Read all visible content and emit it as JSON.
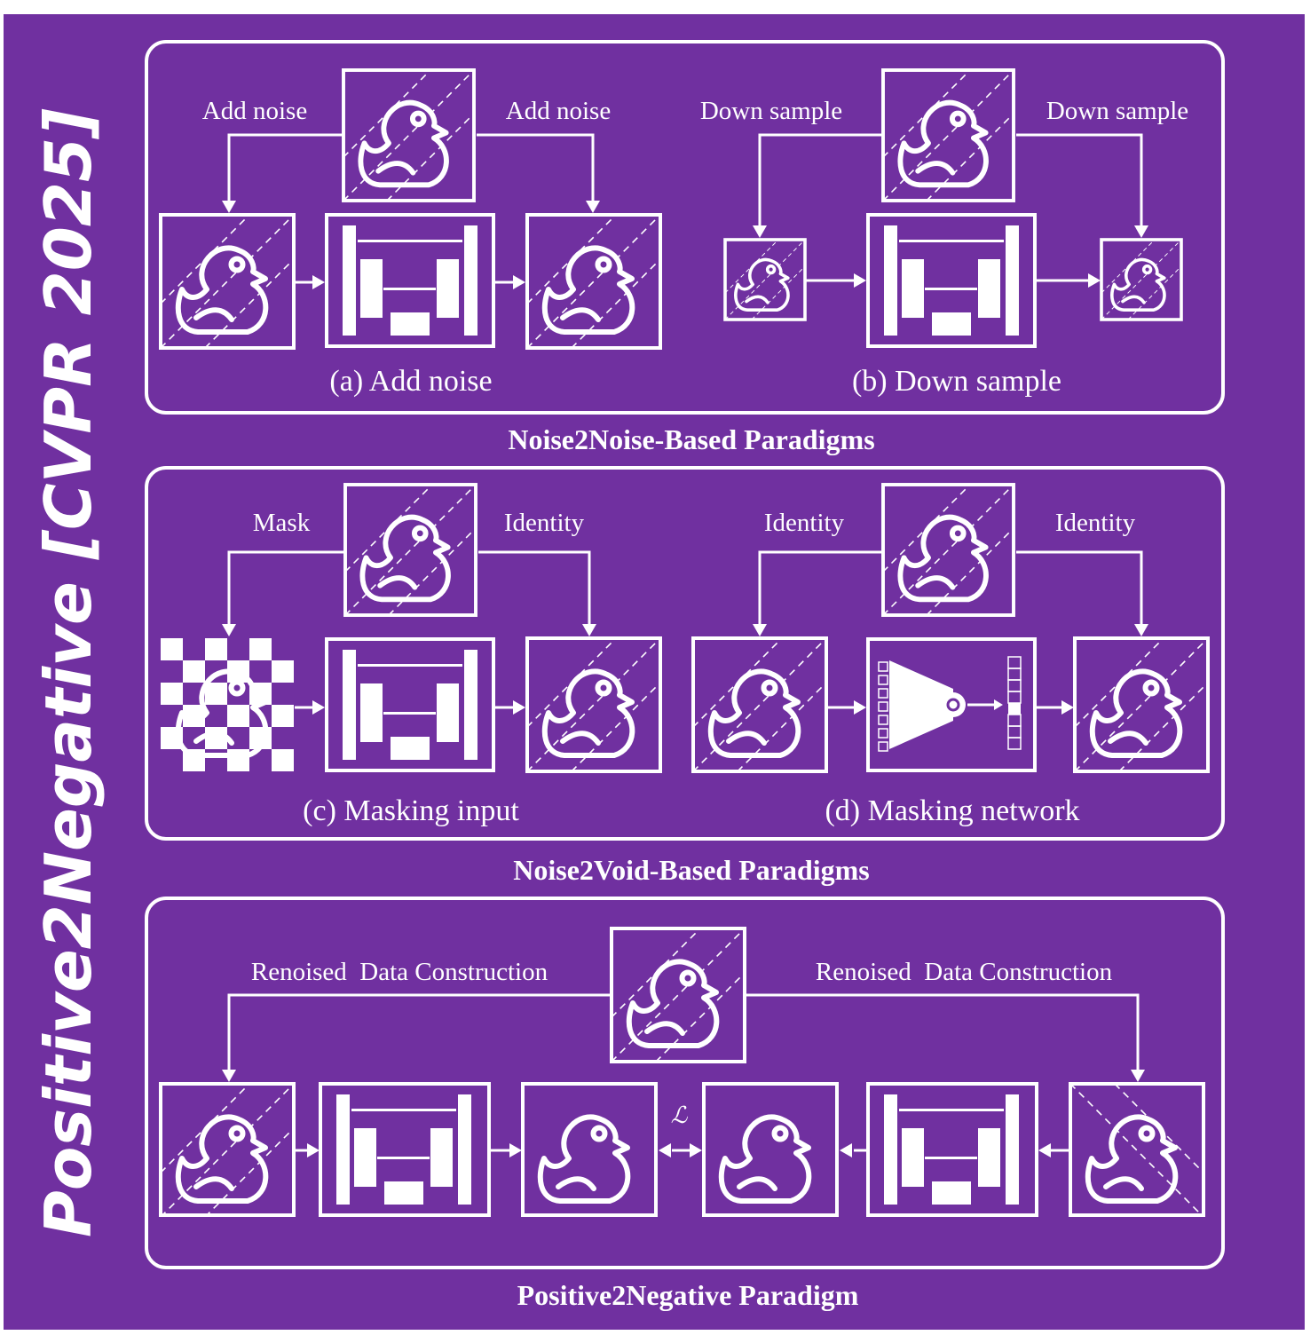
{
  "side_title": "Positive2Negative [CVPR 2025]",
  "colors": {
    "background": "#7030a0",
    "foreground": "#ffffff",
    "outer_margin": "#ffffff"
  },
  "icons": {
    "duck": "rubber-duck-icon",
    "unet": "unet-network-icon",
    "mask_net": "masking-network-icon",
    "checker": "checkerboard-mask-icon",
    "arrow": "arrow-icon",
    "loss": "loss-symbol"
  },
  "sections": {
    "n2n": {
      "heading": "Noise2Noise-Based Paradigms",
      "a": {
        "caption": "(a) Add noise",
        "left_label": "Add noise",
        "right_label": "Add noise"
      },
      "b": {
        "caption": "(b) Down sample",
        "left_label": "Down sample",
        "right_label": "Down sample"
      }
    },
    "n2v": {
      "heading": "Noise2Void-Based Paradigms",
      "c": {
        "caption": "(c) Masking input",
        "left_label": "Mask",
        "right_label": "Identity"
      },
      "d": {
        "caption": "(d) Masking network",
        "left_label": "Identity",
        "right_label": "Identity"
      }
    },
    "p2n": {
      "heading": "Positive2Negative Paradigm",
      "left_label": "Renoised  Data Construction",
      "right_label": "Renoised  Data Construction",
      "loss_symbol": "ℒ"
    }
  }
}
